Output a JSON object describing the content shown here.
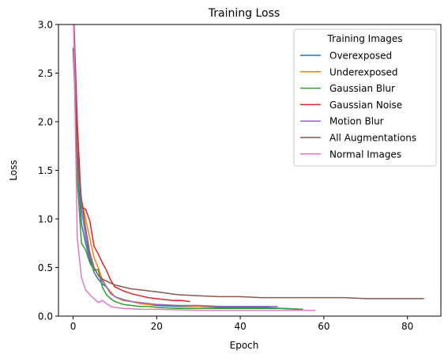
{
  "chart_data": {
    "type": "line",
    "title": "Training Loss",
    "xlabel": "Epoch",
    "ylabel": "Loss",
    "xlim": [
      -3.5,
      88
    ],
    "ylim": [
      0,
      3.0
    ],
    "xticks": [
      0,
      20,
      40,
      60,
      80
    ],
    "yticks": [
      0.0,
      0.5,
      1.0,
      1.5,
      2.0,
      2.5,
      3.0
    ],
    "xtick_labels": [
      "0",
      "20",
      "40",
      "60",
      "80"
    ],
    "ytick_labels": [
      "0.0",
      "0.5",
      "1.0",
      "1.5",
      "2.0",
      "2.5",
      "3.0"
    ],
    "legend": {
      "title": "Training Images",
      "position": "top-right"
    },
    "series": [
      {
        "name": "Overexposed",
        "color": "#1f77b4",
        "x": [
          0,
          1,
          2,
          3,
          4,
          5,
          6,
          7,
          8,
          9,
          10,
          12,
          14,
          16,
          18,
          20,
          25,
          30,
          35,
          40,
          45,
          50,
          55
        ],
        "y": [
          3.3,
          1.6,
          0.95,
          0.75,
          0.58,
          0.45,
          0.38,
          0.33,
          0.3,
          0.25,
          0.2,
          0.17,
          0.15,
          0.13,
          0.12,
          0.11,
          0.1,
          0.1,
          0.09,
          0.09,
          0.09,
          0.08,
          0.07
        ]
      },
      {
        "name": "Underexposed",
        "color": "#ff7f0e",
        "x": [
          0,
          1,
          2,
          3,
          4,
          5,
          6,
          7,
          8,
          9,
          10,
          12,
          14,
          16,
          18,
          20,
          25,
          30,
          35,
          40,
          45
        ],
        "y": [
          3.3,
          1.5,
          1.2,
          1.0,
          0.8,
          0.6,
          0.5,
          0.38,
          0.3,
          0.25,
          0.2,
          0.16,
          0.15,
          0.13,
          0.12,
          0.12,
          0.11,
          0.1,
          0.1,
          0.1,
          0.1
        ]
      },
      {
        "name": "Gaussian Blur",
        "color": "#2ca02c",
        "x": [
          0,
          1,
          2,
          3,
          4,
          5,
          6,
          7,
          8,
          9,
          10,
          12,
          14,
          16,
          18,
          20,
          25,
          30,
          35,
          40,
          45,
          50,
          55
        ],
        "y": [
          3.3,
          1.4,
          0.75,
          0.68,
          0.55,
          0.47,
          0.48,
          0.3,
          0.22,
          0.18,
          0.15,
          0.12,
          0.11,
          0.1,
          0.1,
          0.09,
          0.08,
          0.08,
          0.08,
          0.08,
          0.08,
          0.08,
          0.07
        ]
      },
      {
        "name": "Gaussian Noise",
        "color": "#d62728",
        "x": [
          0,
          1,
          2,
          3,
          4,
          5,
          6,
          7,
          8,
          9,
          10,
          12,
          14,
          16,
          18,
          20,
          22,
          24,
          26,
          28
        ],
        "y": [
          3.3,
          2.0,
          1.12,
          1.1,
          0.98,
          0.72,
          0.64,
          0.55,
          0.47,
          0.37,
          0.3,
          0.26,
          0.23,
          0.21,
          0.19,
          0.18,
          0.17,
          0.16,
          0.16,
          0.15
        ]
      },
      {
        "name": "Motion Blur",
        "color": "#9467bd",
        "x": [
          0,
          1,
          2,
          3,
          4,
          5,
          6,
          7,
          8,
          9,
          10,
          12,
          14,
          16,
          18,
          20,
          25,
          30,
          35,
          40,
          45,
          49
        ],
        "y": [
          3.3,
          1.6,
          1.1,
          0.82,
          0.6,
          0.5,
          0.42,
          0.36,
          0.3,
          0.23,
          0.2,
          0.17,
          0.15,
          0.14,
          0.13,
          0.12,
          0.11,
          0.11,
          0.1,
          0.1,
          0.1,
          0.1
        ]
      },
      {
        "name": "All Augmentations",
        "color": "#8c564b",
        "x": [
          0,
          1,
          2,
          3,
          4,
          5,
          6,
          7,
          8,
          9,
          10,
          12,
          14,
          16,
          18,
          20,
          25,
          30,
          35,
          40,
          45,
          50,
          55,
          60,
          65,
          70,
          75,
          80,
          84
        ],
        "y": [
          2.76,
          1.7,
          1.2,
          0.9,
          0.65,
          0.5,
          0.42,
          0.38,
          0.36,
          0.34,
          0.32,
          0.3,
          0.28,
          0.27,
          0.26,
          0.25,
          0.22,
          0.21,
          0.2,
          0.2,
          0.19,
          0.19,
          0.19,
          0.19,
          0.19,
          0.18,
          0.18,
          0.18,
          0.18
        ]
      },
      {
        "name": "Normal Images",
        "color": "#e377c2",
        "x": [
          0,
          1,
          2,
          3,
          4,
          5,
          6,
          7,
          8,
          9,
          10,
          12,
          14,
          16,
          18,
          20,
          25,
          30,
          35,
          40,
          45,
          50,
          55,
          58
        ],
        "y": [
          3.3,
          0.8,
          0.4,
          0.27,
          0.22,
          0.18,
          0.14,
          0.16,
          0.13,
          0.1,
          0.09,
          0.08,
          0.075,
          0.07,
          0.07,
          0.07,
          0.065,
          0.06,
          0.06,
          0.06,
          0.06,
          0.06,
          0.06,
          0.06
        ]
      }
    ]
  }
}
